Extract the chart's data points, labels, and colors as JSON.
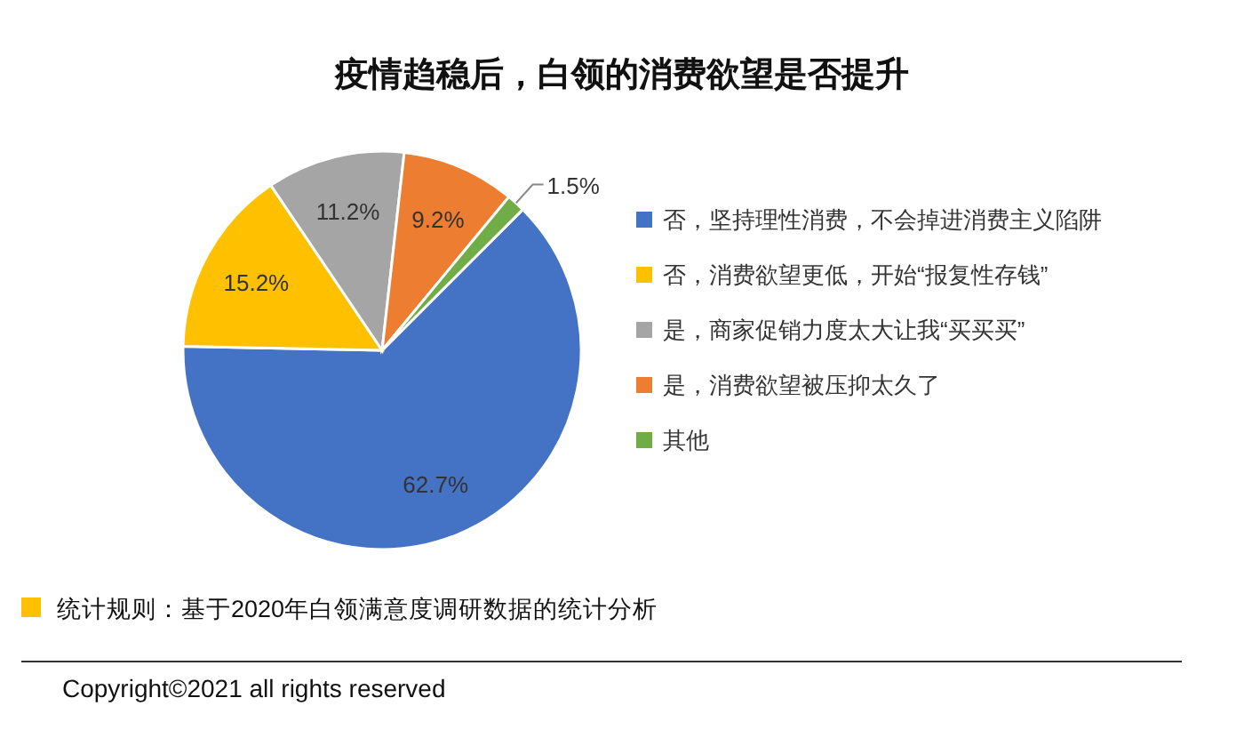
{
  "chart_data": {
    "type": "pie",
    "title": "疫情趋稳后，白领的消费欲望是否提升",
    "categories": [
      "否，坚持理性消费，不会掉进消费主义陷阱",
      "否，消费欲望更低，开始“报复性存钱”",
      "是，商家促销力度太大让我“买买买”",
      "是，消费欲望被压抑太久了",
      "其他"
    ],
    "values": [
      62.7,
      15.2,
      11.2,
      9.2,
      1.5
    ],
    "colors": [
      "#4472c4",
      "#ffc000",
      "#a5a5a5",
      "#ed7d31",
      "#70ad47"
    ],
    "value_labels": [
      "62.7%",
      "15.2%",
      "11.2%",
      "9.2%",
      "1.5%"
    ],
    "legend": "right",
    "annotations": [
      "统计规则：基于2020年白领满意度调研数据的统计分析",
      "Copyright©2021 all rights reserved"
    ]
  }
}
